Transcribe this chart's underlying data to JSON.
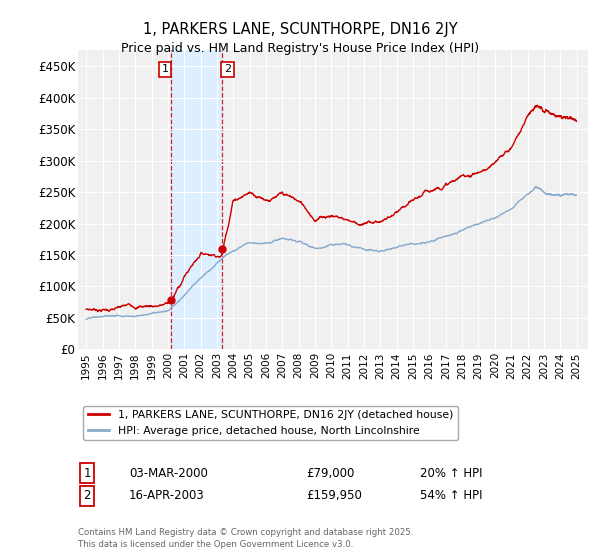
{
  "title": "1, PARKERS LANE, SCUNTHORPE, DN16 2JY",
  "subtitle": "Price paid vs. HM Land Registry's House Price Index (HPI)",
  "ylim": [
    0,
    475000
  ],
  "yticks": [
    0,
    50000,
    100000,
    150000,
    200000,
    250000,
    300000,
    350000,
    400000,
    450000
  ],
  "ytick_labels": [
    "£0",
    "£50K",
    "£100K",
    "£150K",
    "£200K",
    "£250K",
    "£300K",
    "£350K",
    "£400K",
    "£450K"
  ],
  "transaction1_date": "03-MAR-2000",
  "transaction1_price": 79000,
  "transaction1_hpi": "20% ↑ HPI",
  "transaction1_price_str": "£79,000",
  "transaction2_date": "16-APR-2003",
  "transaction2_price": 159950,
  "transaction2_hpi": "54% ↑ HPI",
  "transaction2_price_str": "£159,950",
  "transaction1_x": 2000.17,
  "transaction2_x": 2003.29,
  "shade_color": "#ddeeff",
  "line1_color": "#cc0000",
  "line2_color": "#88aacc",
  "legend1_label": "1, PARKERS LANE, SCUNTHORPE, DN16 2JY (detached house)",
  "legend2_label": "HPI: Average price, detached house, North Lincolnshire",
  "footnote": "Contains HM Land Registry data © Crown copyright and database right 2025.\nThis data is licensed under the Open Government Licence v3.0.",
  "bg_color": "#f0f0f0"
}
